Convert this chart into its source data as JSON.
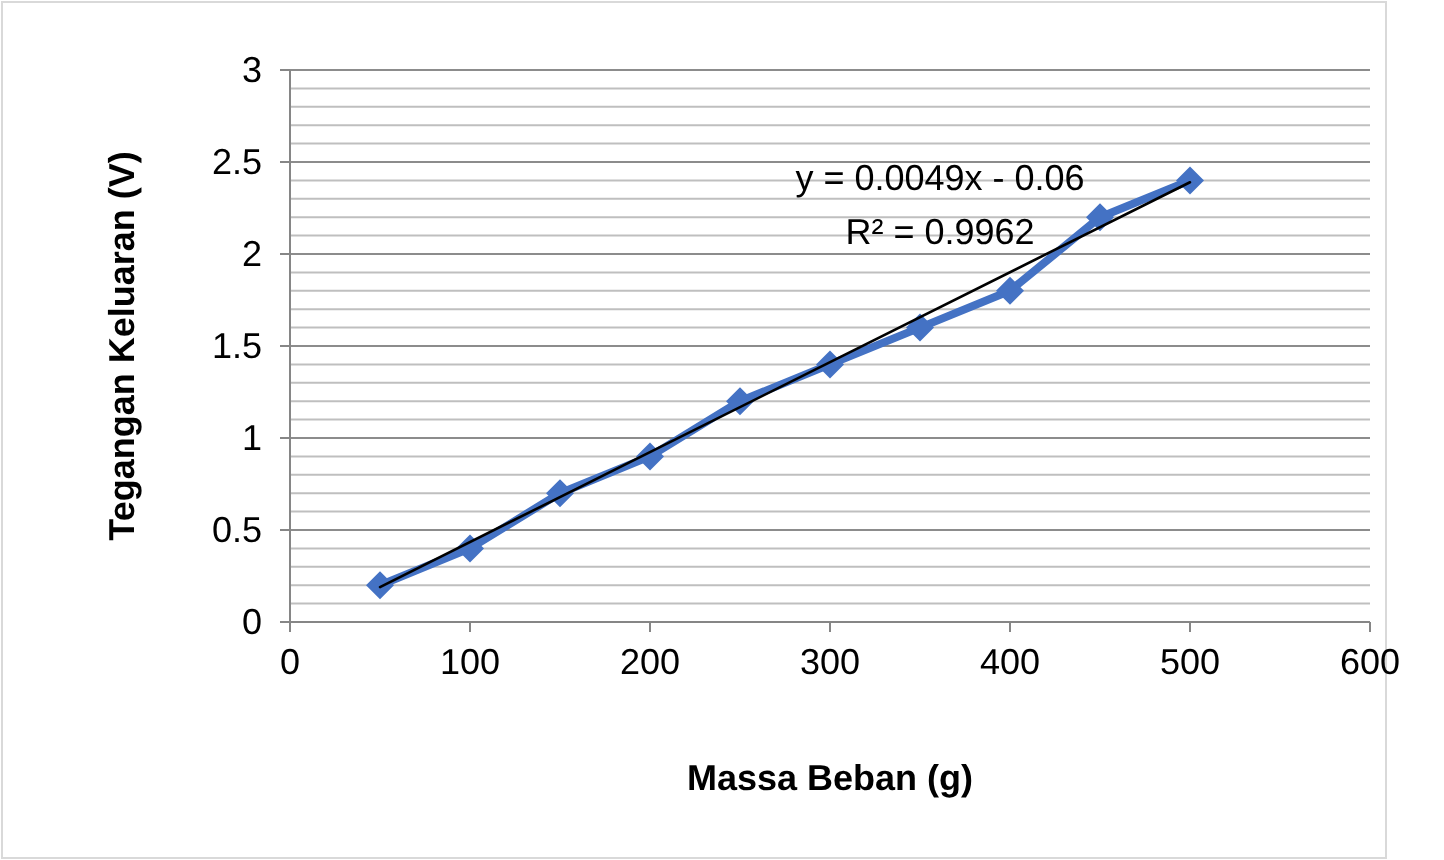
{
  "chart_data": {
    "type": "line",
    "xlabel": "Massa Beban (g)",
    "ylabel": "Tegangan Keluaran (V)",
    "xlim": [
      0,
      600
    ],
    "xticks": [
      0,
      100,
      200,
      300,
      400,
      500,
      600
    ],
    "ylim": [
      0,
      3
    ],
    "yticks": [
      0,
      {
        "value": 0.1,
        "label": null
      },
      {
        "value": 0.2,
        "label": null
      },
      {
        "value": 0.3,
        "label": null
      },
      {
        "value": 0.4,
        "label": null
      },
      0.5,
      {
        "value": 0.6,
        "label": null
      },
      {
        "value": 0.7,
        "label": null
      },
      {
        "value": 0.8,
        "label": null
      },
      {
        "value": 0.9,
        "label": null
      },
      1,
      {
        "value": 1.1,
        "label": null
      },
      {
        "value": 1.2,
        "label": null
      },
      {
        "value": 1.3,
        "label": null
      },
      {
        "value": 1.4,
        "label": null
      },
      1.5,
      {
        "value": 1.6,
        "label": null
      },
      {
        "value": 1.7,
        "label": null
      },
      {
        "value": 1.8,
        "label": null
      },
      {
        "value": 1.9,
        "label": null
      },
      2,
      {
        "value": 2.1,
        "label": null
      },
      {
        "value": 2.2,
        "label": null
      },
      {
        "value": 2.3,
        "label": null
      },
      {
        "value": 2.4,
        "label": null
      },
      2.5,
      {
        "value": 2.6,
        "label": null
      },
      {
        "value": 2.7,
        "label": null
      },
      {
        "value": 2.8,
        "label": null
      },
      {
        "value": 2.9,
        "label": null
      },
      3
    ],
    "grid": "y",
    "series": [
      {
        "color": "#4472c4",
        "marker": "diamond",
        "x": [
          50,
          100,
          150,
          200,
          250,
          300,
          350,
          400,
          450,
          500
        ],
        "values": [
          0.2,
          0.4,
          0.7,
          0.9,
          1.2,
          1.4,
          1.6,
          1.8,
          2.2,
          2.4
        ]
      },
      {
        "type": "line",
        "color": "#000000",
        "marker": "none",
        "x": [
          50,
          500
        ],
        "values": [
          0.19,
          2.39
        ]
      }
    ],
    "annotations": [
      "y = 0.0049x - 0.06",
      "R² = 0.9962"
    ]
  }
}
